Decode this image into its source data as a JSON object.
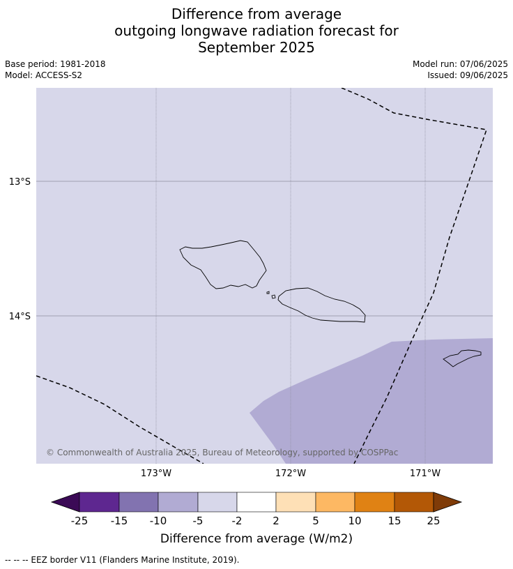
{
  "title_lines": [
    "Difference from average",
    "outgoing longwave radiation forecast for",
    "September 2025"
  ],
  "meta": {
    "base_period": "Base period: 1981-2018",
    "model": "Model: ACCESS-S2",
    "model_run": "Model run: 07/06/2025",
    "issued": "Issued: 09/06/2025"
  },
  "map": {
    "lat_labels": [
      "13°S",
      "14°S"
    ],
    "lon_labels": [
      "173°W",
      "172°W",
      "171°W"
    ],
    "copyright": "© Commonwealth of Australia 2025, Bureau of Meteorology, supported by COSPPac",
    "colors": {
      "background_class": "#d7d7ea",
      "anomaly_class": "#b1abd3",
      "coast": "#000000",
      "grid": "#8c8c9c"
    }
  },
  "legend": {
    "ticks": [
      "-25",
      "-15",
      "-10",
      "-5",
      "-2",
      "2",
      "5",
      "10",
      "15",
      "25"
    ],
    "colors": [
      "#3b0a56",
      "#5e2790",
      "#8273b0",
      "#b1abd3",
      "#d7d7ea",
      "#ffffff",
      "#fee0b6",
      "#fdb863",
      "#e08214",
      "#b35806",
      "#7f3b08"
    ],
    "label": "Difference from average (W/m2)"
  },
  "footer": "--  --  -- EEZ border V11 (Flanders Marine Institute, 2019)."
}
